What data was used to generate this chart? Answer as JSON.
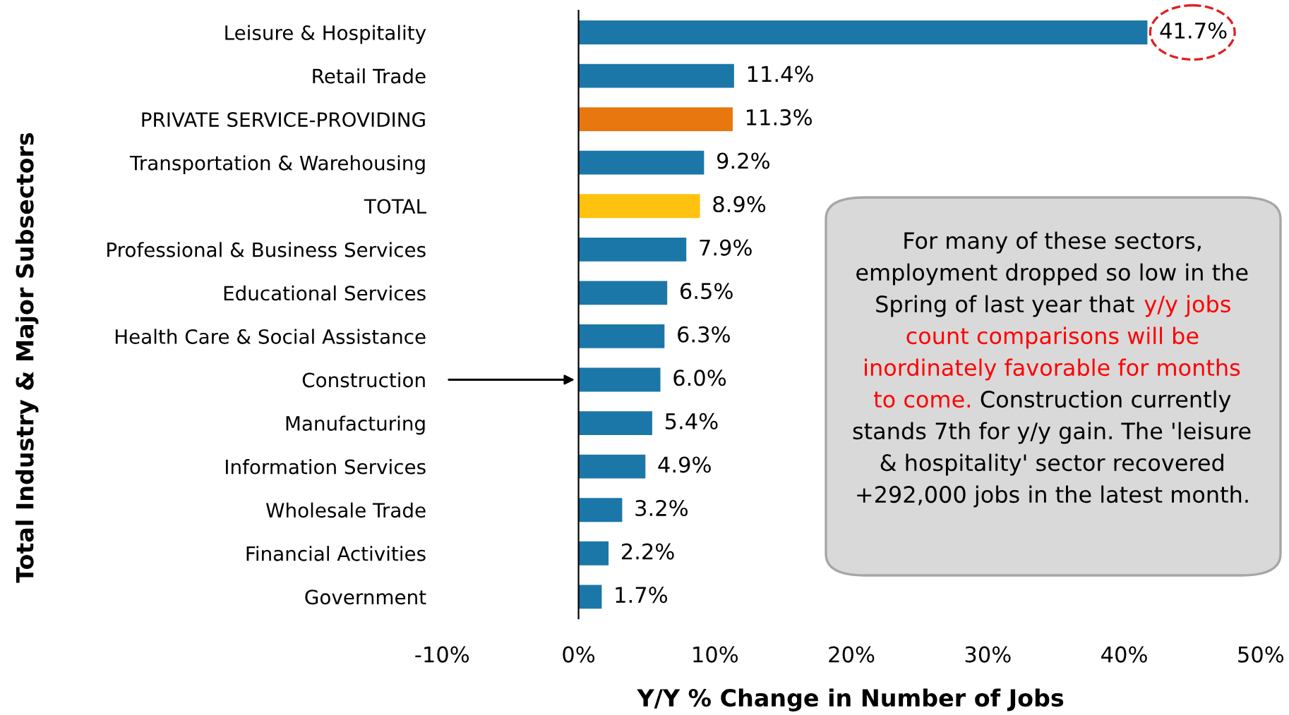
{
  "chart_data": {
    "type": "bar",
    "orientation": "horizontal",
    "ylabel": "Total Industry & Major Subsectors",
    "xlabel": "Y/Y % Change in Number of Jobs",
    "categories": [
      "Leisure & Hospitality",
      "Retail Trade",
      "PRIVATE SERVICE-PROVIDING",
      "Transportation & Warehousing",
      "TOTAL",
      "Professional & Business Services",
      "Educational Services",
      "Health Care & Social Assistance",
      "Construction",
      "Manufacturing",
      "Information Services",
      "Wholesale Trade",
      "Financial Activities",
      "Government"
    ],
    "values": [
      41.7,
      11.4,
      11.3,
      9.2,
      8.9,
      7.9,
      6.5,
      6.3,
      6.0,
      5.4,
      4.9,
      3.2,
      2.2,
      1.7
    ],
    "colors": [
      "#1b77a8",
      "#1b77a8",
      "#e8770f",
      "#1b77a8",
      "#ffc20e",
      "#1b77a8",
      "#1b77a8",
      "#1b77a8",
      "#1b77a8",
      "#1b77a8",
      "#1b77a8",
      "#1b77a8",
      "#1b77a8",
      "#1b77a8"
    ],
    "value_labels": [
      "41.7%",
      "11.4%",
      "11.3%",
      "9.2%",
      "8.9%",
      "7.9%",
      "6.5%",
      "6.3%",
      "6.0%",
      "5.4%",
      "4.9%",
      "3.2%",
      "2.2%",
      "1.7%"
    ],
    "xlim": [
      -10,
      50
    ],
    "xticks": [
      {
        "value": -10,
        "label": "-10%"
      },
      {
        "value": 0,
        "label": "0%"
      },
      {
        "value": 10,
        "label": "10%"
      },
      {
        "value": 20,
        "label": "20%"
      },
      {
        "value": 30,
        "label": "30%"
      },
      {
        "value": 40,
        "label": "40%"
      },
      {
        "value": 50,
        "label": "50%"
      }
    ],
    "annotations": [
      "For many of these sectors, employment dropped so low in the Spring of last year that",
      "y/y jobs count comparisons will be inordinately favorable for months to come.",
      "Construction currently stands 7th for y/y gain. The 'leisure & hospitality' sector recovered +292,000 jobs in the latest month."
    ]
  }
}
